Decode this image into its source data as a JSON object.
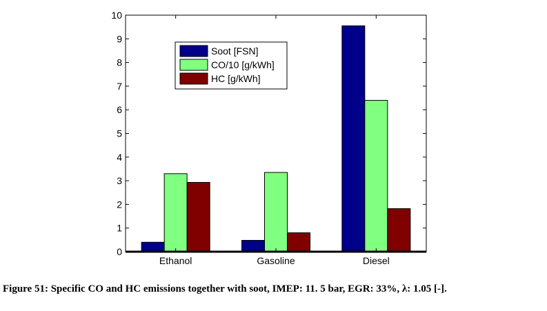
{
  "chart_data": {
    "type": "bar",
    "categories": [
      "Ethanol",
      "Gasoline",
      "Diesel"
    ],
    "series": [
      {
        "name": "Soot [FSN]",
        "color": "#00008b",
        "values": [
          0.4,
          0.48,
          9.55
        ]
      },
      {
        "name": "CO/10 [g/kWh]",
        "color": "#80ff80",
        "values": [
          3.3,
          3.35,
          6.4
        ]
      },
      {
        "name": "HC [g/kWh]",
        "color": "#800000",
        "values": [
          2.93,
          0.8,
          1.82
        ]
      }
    ],
    "ylim": [
      0,
      10
    ],
    "yticks": [
      0,
      1,
      2,
      3,
      4,
      5,
      6,
      7,
      8,
      9,
      10
    ],
    "legend_position": "upper-left-inside",
    "grid": false
  },
  "caption": "Figure 51: Specific CO and HC emissions together with soot, IMEP: 11. 5 bar, EGR: 33%, λ: 1.05 [-]."
}
